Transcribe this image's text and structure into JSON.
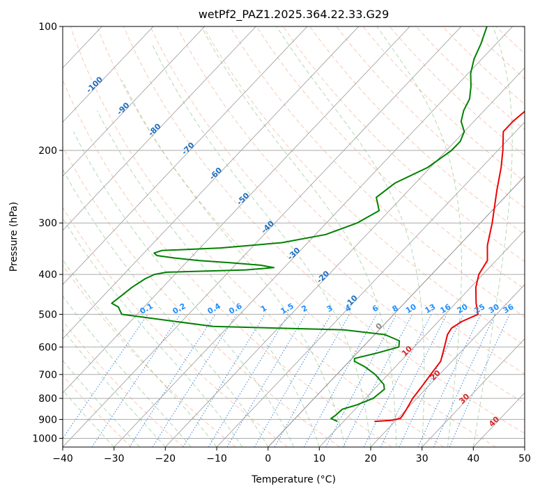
{
  "chart_data": {
    "type": "line",
    "title": "wetPf2_PAZ1.2025.364.22.33.G29",
    "xlabel": "Temperature (°C)",
    "ylabel": "Pressure (hPa)",
    "xlim": [
      -40,
      50
    ],
    "ylim": [
      1050,
      100
    ],
    "y_scale": "log",
    "x_ticks": [
      "−40",
      "−30",
      "−20",
      "−10",
      "0",
      "10",
      "20",
      "30",
      "40",
      "50"
    ],
    "y_ticks": [
      "100",
      "200",
      "300",
      "400",
      "500",
      "600",
      "700",
      "800",
      "900",
      "1000"
    ],
    "grid": true,
    "skew_labels": [
      "-100",
      "-90",
      "-80",
      "-70",
      "-60",
      "-50",
      "-40",
      "-30",
      "-20",
      "-10",
      "0",
      "10",
      "20",
      "30",
      "40"
    ],
    "mixing_ratio_labels": [
      "0.1",
      "0.2",
      "0.4",
      "0.6",
      "1",
      "1.5",
      "2",
      "3",
      "4",
      "6",
      "8",
      "10",
      "13",
      "16",
      "20",
      "25",
      "30",
      "36"
    ],
    "series": [
      {
        "color": "#ee0000",
        "values": [
          [
            910,
            16.0
          ],
          [
            905,
            19.0
          ],
          [
            895,
            20.5
          ],
          [
            880,
            20.4
          ],
          [
            850,
            20.0
          ],
          [
            800,
            19.2
          ],
          [
            750,
            18.8
          ],
          [
            700,
            18.3
          ],
          [
            650,
            17.8
          ],
          [
            600,
            15.9
          ],
          [
            560,
            14.2
          ],
          [
            540,
            13.8
          ],
          [
            520,
            14.6
          ],
          [
            500,
            16.4
          ],
          [
            470,
            14.0
          ],
          [
            430,
            11.0
          ],
          [
            400,
            9.2
          ],
          [
            370,
            8.3
          ],
          [
            340,
            5.5
          ],
          [
            300,
            2.3
          ],
          [
            250,
            -2.8
          ],
          [
            220,
            -6.2
          ],
          [
            200,
            -9.0
          ],
          [
            180,
            -12.4
          ],
          [
            170,
            -12.4
          ],
          [
            150,
            -11.4
          ],
          [
            130,
            -10.9
          ],
          [
            110,
            -11.2
          ],
          [
            100,
            -11.9
          ]
        ]
      },
      {
        "color": "#008000",
        "values": [
          [
            910,
            8.8
          ],
          [
            895,
            7.0
          ],
          [
            880,
            7.3
          ],
          [
            850,
            7.5
          ],
          [
            830,
            9.5
          ],
          [
            800,
            11.5
          ],
          [
            760,
            12.0
          ],
          [
            740,
            11.0
          ],
          [
            700,
            7.5
          ],
          [
            670,
            4.0
          ],
          [
            650,
            1.0
          ],
          [
            640,
            0.5
          ],
          [
            620,
            4.0
          ],
          [
            600,
            7.0
          ],
          [
            580,
            6.0
          ],
          [
            560,
            2.0
          ],
          [
            545,
            -7.0
          ],
          [
            540,
            -20.0
          ],
          [
            535,
            -33.0
          ],
          [
            500,
            -53.0
          ],
          [
            480,
            -55.0
          ],
          [
            470,
            -57.0
          ],
          [
            450,
            -56.5
          ],
          [
            430,
            -56.0
          ],
          [
            410,
            -55.0
          ],
          [
            400,
            -54.0
          ],
          [
            395,
            -52.0
          ],
          [
            390,
            -37.0
          ],
          [
            385,
            -32.0
          ],
          [
            380,
            -35.0
          ],
          [
            375,
            -41.0
          ],
          [
            370,
            -48.0
          ],
          [
            365,
            -53.0
          ],
          [
            360,
            -57.0
          ],
          [
            355,
            -58.0
          ],
          [
            350,
            -57.0
          ],
          [
            345,
            -46.0
          ],
          [
            335,
            -35.0
          ],
          [
            320,
            -28.0
          ],
          [
            300,
            -24.0
          ],
          [
            280,
            -22.0
          ],
          [
            260,
            -25.0
          ],
          [
            240,
            -24.0
          ],
          [
            220,
            -20.5
          ],
          [
            200,
            -19.0
          ],
          [
            190,
            -19.0
          ],
          [
            180,
            -20.0
          ],
          [
            170,
            -22.5
          ],
          [
            160,
            -24.0
          ],
          [
            150,
            -25.0
          ],
          [
            140,
            -27.0
          ],
          [
            130,
            -29.5
          ],
          [
            120,
            -31.5
          ],
          [
            110,
            -33.0
          ],
          [
            100,
            -35.0
          ]
        ]
      }
    ]
  }
}
